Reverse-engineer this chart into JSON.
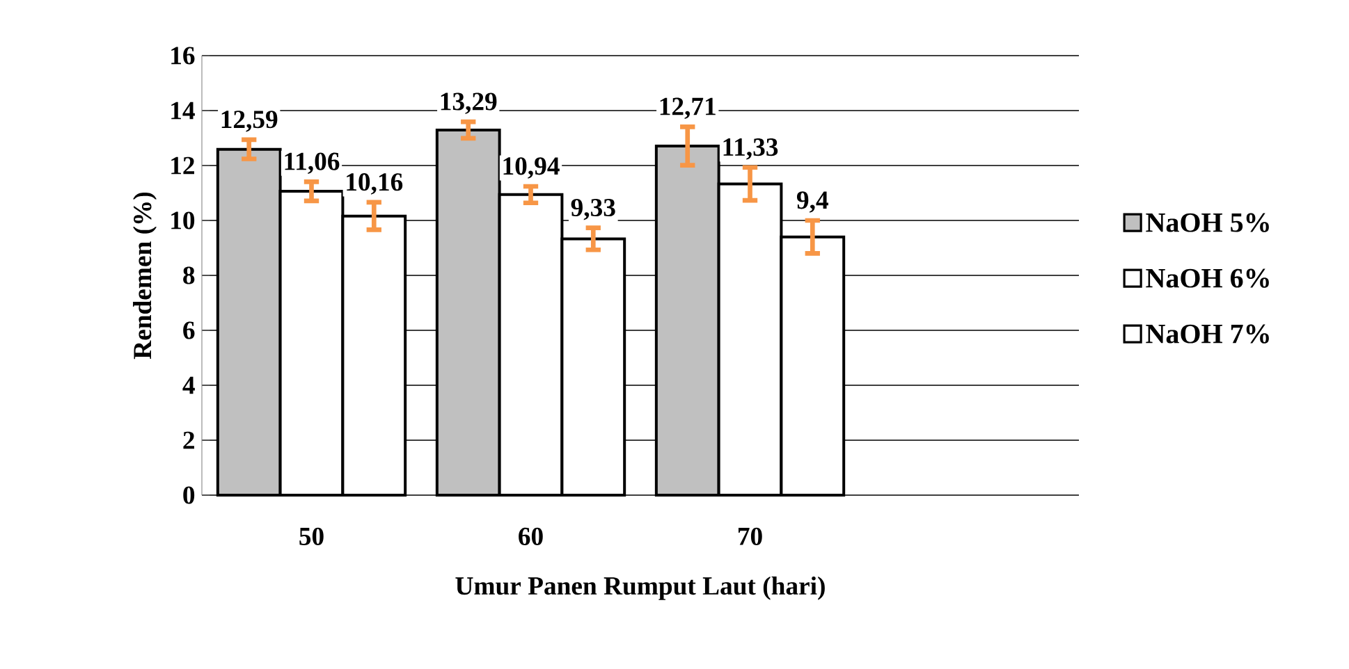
{
  "chart_data": {
    "type": "bar",
    "xlabel": "Umur Panen Rumput Laut (hari)",
    "ylabel": "Rendemen (%)",
    "categories": [
      "50",
      "60",
      "70"
    ],
    "series": [
      {
        "name": "NaOH 5%",
        "color": "#c0c0c0",
        "values": [
          12.59,
          13.29,
          12.71
        ],
        "errors": [
          0.35,
          0.3,
          0.7
        ],
        "value_labels": [
          "12,59",
          "13,29",
          "12,71"
        ]
      },
      {
        "name": "NaOH 6%",
        "color": "#ffffff",
        "values": [
          11.06,
          10.94,
          11.33
        ],
        "errors": [
          0.35,
          0.3,
          0.6
        ],
        "value_labels": [
          "11,06",
          "10,94",
          "11,33"
        ]
      },
      {
        "name": "NaOH 7%",
        "color": "#ffffff",
        "values": [
          10.16,
          9.33,
          9.4
        ],
        "errors": [
          0.5,
          0.4,
          0.6
        ],
        "value_labels": [
          "10,16",
          "9,33",
          "9,4"
        ]
      }
    ],
    "ylim": [
      0,
      16
    ],
    "yticks": [
      0,
      2,
      4,
      6,
      8,
      10,
      12,
      14,
      16
    ],
    "grid": "y",
    "legend": "right"
  }
}
